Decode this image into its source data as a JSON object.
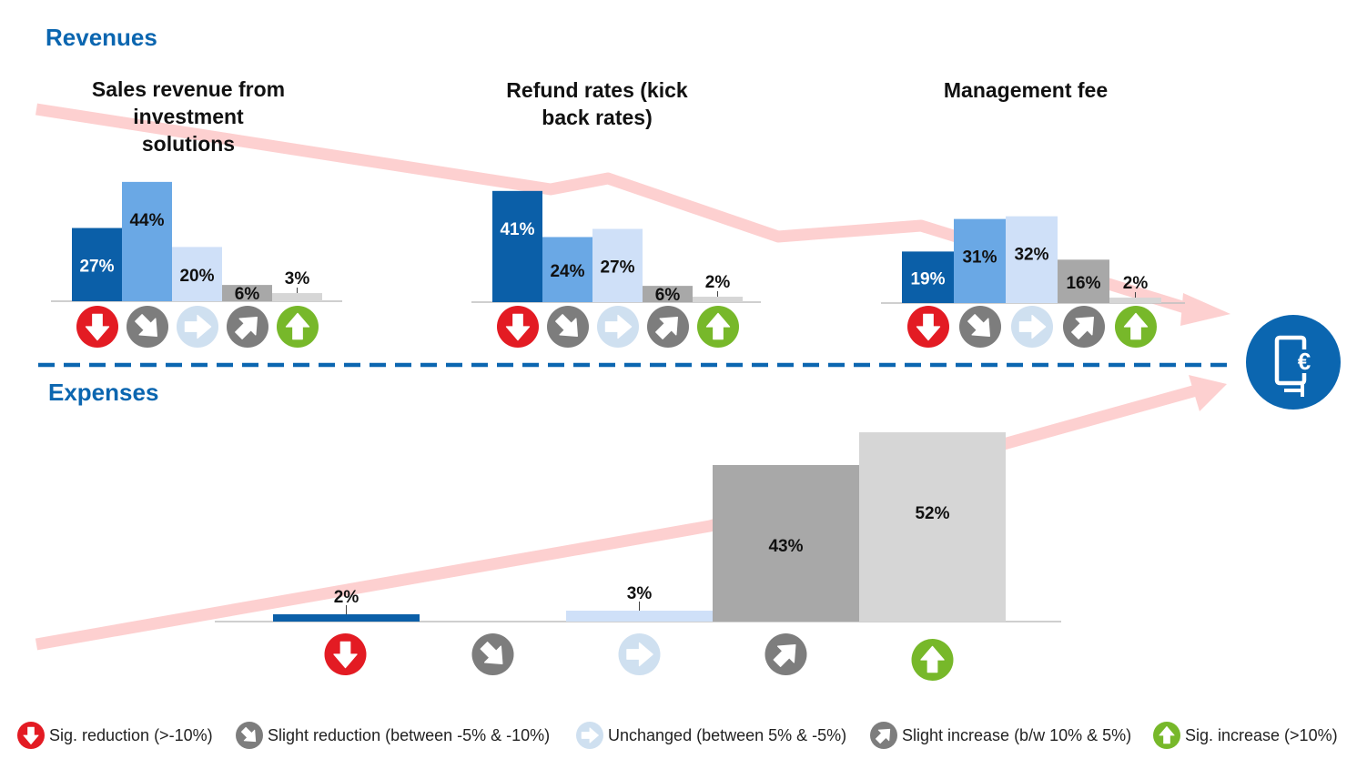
{
  "sections": {
    "revenues_title": "Revenues",
    "expenses_title": "Expenses"
  },
  "colors": {
    "accent": "#0b66b0",
    "dark_blue": "#0b5fa8",
    "mid_blue": "#6aa8e5",
    "light_blue": "#cfe0f8",
    "dark_gray": "#a8a8a8",
    "light_gray": "#d6d6d6",
    "trend_arrow": "#fdd0d0",
    "icon_red": "#e31b23",
    "icon_gray": "#7d7d7d",
    "icon_light": "#cfe0f0",
    "icon_green": "#77b82a"
  },
  "icons": [
    "arrow-down-icon",
    "arrow-down-right-icon",
    "arrow-right-icon",
    "arrow-up-right-icon",
    "arrow-up-icon"
  ],
  "legend": [
    {
      "icon": "arrow-down-icon",
      "label": "Sig. reduction (>-10%)"
    },
    {
      "icon": "arrow-down-right-icon",
      "label": "Slight reduction (between -5% & -10%)"
    },
    {
      "icon": "arrow-right-icon",
      "label": "Unchanged (between 5% & -5%)"
    },
    {
      "icon": "arrow-up-right-icon",
      "label": "Slight increase (b/w 10% & 5%)"
    },
    {
      "icon": "arrow-up-icon",
      "label": "Sig. increase (>10%)"
    }
  ],
  "chart_data": [
    {
      "type": "bar",
      "title": "Sales revenue from investment solutions",
      "categories": [
        "Sig. reduction (>-10%)",
        "Slight reduction (between -5% & -10%)",
        "Unchanged (between 5% & -5%)",
        "Slight increase (b/w 10% & 5%)",
        "Sig. increase (>10%)"
      ],
      "values": [
        27,
        44,
        20,
        6,
        3
      ],
      "value_labels": [
        "27%",
        "44%",
        "20%",
        "6%",
        "3%"
      ],
      "ylim": [
        0,
        50
      ]
    },
    {
      "type": "bar",
      "title": "Refund rates (kick back rates)",
      "categories": [
        "Sig. reduction (>-10%)",
        "Slight reduction (between -5% & -10%)",
        "Unchanged (between 5% & -5%)",
        "Slight increase (b/w 10% & 5%)",
        "Sig. increase (>10%)"
      ],
      "values": [
        41,
        24,
        27,
        6,
        2
      ],
      "value_labels": [
        "41%",
        "24%",
        "27%",
        "6%",
        "2%"
      ],
      "ylim": [
        0,
        50
      ]
    },
    {
      "type": "bar",
      "title": "Management fee",
      "categories": [
        "Sig. reduction (>-10%)",
        "Slight reduction (between -5% & -10%)",
        "Unchanged (between 5% & -5%)",
        "Slight increase (b/w 10% & 5%)",
        "Sig. increase (>10%)"
      ],
      "values": [
        19,
        31,
        32,
        16,
        2
      ],
      "value_labels": [
        "19%",
        "31%",
        "32%",
        "16%",
        "2%"
      ],
      "ylim": [
        0,
        50
      ]
    },
    {
      "type": "bar",
      "title": "",
      "categories": [
        "Sig. reduction (>-10%)",
        "Slight reduction (between -5% & -10%)",
        "Unchanged (between 5% & -5%)",
        "Slight increase (b/w 10% & 5%)",
        "Sig. increase (>10%)"
      ],
      "values": [
        2,
        0,
        3,
        43,
        52
      ],
      "value_labels": [
        "2%",
        "",
        "3%",
        "43%",
        "52%"
      ],
      "ylim": [
        0,
        60
      ]
    }
  ]
}
